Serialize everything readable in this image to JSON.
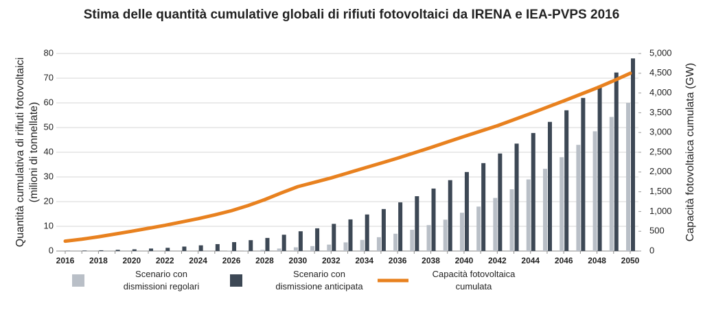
{
  "chart_data": {
    "type": "bar_line",
    "title": "Stima delle quantità cumulative globali di rifiuti fotovoltaici da IRENA e IEA-PVPS 2016",
    "y_label": [
      "Quantità cumulativa di rifiuti fotovoltaici",
      "(milioni di tonnellate)"
    ],
    "y2_label": "Capacità fotovoltaica cumulata (GW)",
    "categories": [
      2016,
      null,
      2018,
      null,
      2020,
      null,
      2022,
      null,
      2024,
      null,
      2026,
      null,
      2028,
      null,
      2030,
      null,
      2032,
      null,
      2034,
      null,
      2036,
      null,
      2038,
      null,
      2040,
      null,
      2042,
      null,
      2044,
      null,
      2046,
      null,
      2048,
      null,
      2050
    ],
    "series": [
      {
        "name": "Scenario con\ndismissioni regolari",
        "color": "#b9bfc7",
        "kind": "bar",
        "values": [
          0,
          0,
          0,
          0,
          0,
          0,
          0,
          0,
          0,
          0,
          0.1,
          0.2,
          0.5,
          1.0,
          1.5,
          2,
          2.6,
          3.5,
          4.5,
          5.6,
          7,
          8.6,
          10.5,
          12.7,
          15.5,
          18,
          21.5,
          25,
          29,
          33.3,
          38,
          43,
          48.5,
          54.3,
          60
        ]
      },
      {
        "name": "Scenario con\ndismissione anticipata",
        "color": "#3d4855",
        "kind": "bar",
        "values": [
          0.1,
          0.2,
          0.3,
          0.5,
          0.7,
          1.0,
          1.3,
          1.8,
          2.3,
          2.8,
          3.6,
          4.4,
          5.3,
          6.6,
          8,
          9.2,
          11,
          12.8,
          14.8,
          17,
          19.7,
          22.2,
          25.3,
          28.7,
          32,
          35.6,
          39.5,
          43.5,
          47.8,
          52.3,
          57,
          62,
          67,
          72.3,
          78
        ]
      },
      {
        "name": "Capacità fotovoltaica\ncumulata",
        "color": "#e8811f",
        "kind": "line",
        "axis": "y2",
        "values": [
          250,
          300,
          360,
          430,
          500,
          575,
          650,
          735,
          820,
          915,
          1020,
          1150,
          1300,
          1470,
          1630,
          1740,
          1850,
          1975,
          2100,
          2225,
          2350,
          2485,
          2620,
          2760,
          2900,
          3035,
          3170,
          3325,
          3480,
          3640,
          3800,
          3965,
          4130,
          4310,
          4500
        ]
      }
    ],
    "ylim": [
      0,
      80
    ],
    "yticks": [
      0,
      10,
      20,
      30,
      40,
      50,
      60,
      70,
      80
    ],
    "y2lim": [
      0,
      5000
    ],
    "y2ticks": [
      0,
      500,
      {
        "value": 1000,
        "label": "1,000"
      },
      {
        "value": 1500,
        "label": "1,500"
      },
      {
        "value": 2000,
        "label": "2,000"
      },
      {
        "value": 2500,
        "label": "2,500"
      },
      {
        "value": 3000,
        "label": "3,000"
      },
      {
        "value": 3500,
        "label": "3,500"
      },
      {
        "value": 4000,
        "label": "4,000"
      },
      {
        "value": 4500,
        "label": "4,500"
      },
      {
        "value": 5000,
        "label": "5,000"
      }
    ],
    "grid": true
  }
}
